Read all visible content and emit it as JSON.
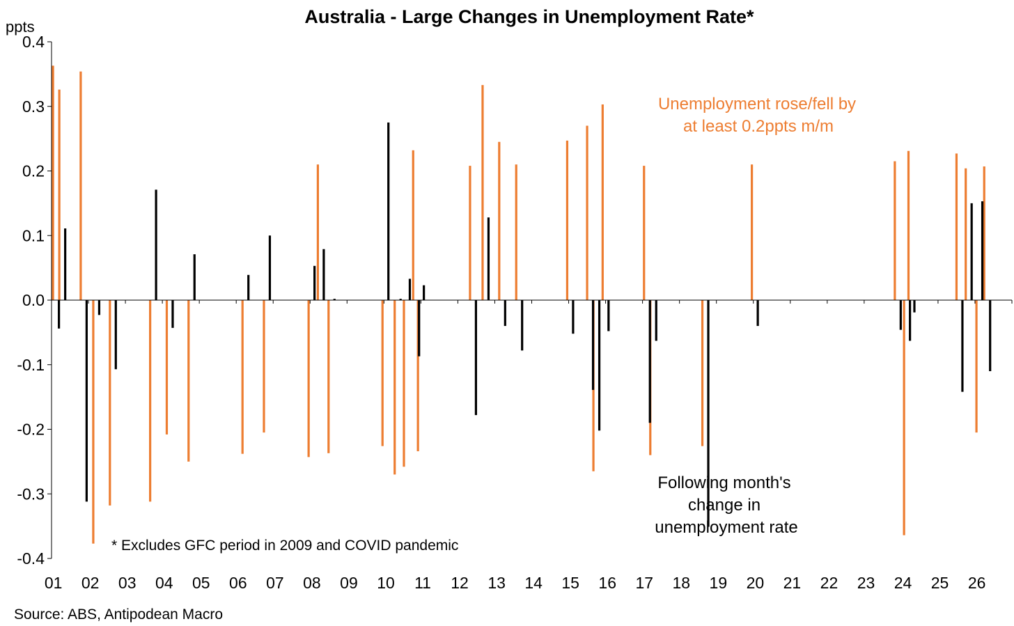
{
  "chart_data": {
    "type": "bar",
    "title": "Australia - Large Changes in Unemployment Rate*",
    "ylabel": "ppts",
    "ylim": [
      -0.4,
      0.4
    ],
    "yticks": [
      0.4,
      0.3,
      0.2,
      0.1,
      0.0,
      -0.1,
      -0.2,
      -0.3,
      -0.4
    ],
    "ytick_labels": [
      "0.4",
      "0.3",
      "0.2",
      "0.1",
      "0.0",
      "-0.1",
      "-0.2",
      "-0.3",
      "-0.4"
    ],
    "xlim": [
      2001,
      2027
    ],
    "xticks": [
      "01",
      "02",
      "03",
      "04",
      "05",
      "06",
      "07",
      "08",
      "09",
      "10",
      "11",
      "12",
      "13",
      "14",
      "15",
      "16",
      "17",
      "18",
      "19",
      "20",
      "21",
      "22",
      "23",
      "24",
      "25",
      "26"
    ],
    "grid": false,
    "colors": {
      "large_change": "#ED7D31",
      "following_month": "#000000"
    },
    "series": [
      {
        "name": "Unemployment rose/fell by at least 0.2ppts m/m",
        "x": [
          2001.04,
          2001.21,
          2001.79,
          2002.13,
          2002.58,
          2003.67,
          2004.12,
          2004.71,
          2006.17,
          2006.75,
          2007.96,
          2008.21,
          2008.5,
          2009.96,
          2010.29,
          2010.54,
          2010.79,
          2010.92,
          2012.33,
          2012.67,
          2013.12,
          2013.58,
          2014.96,
          2015.5,
          2015.67,
          2015.92,
          2017.04,
          2017.21,
          2018.62,
          2019.96,
          2023.83,
          2024.08,
          2024.2,
          2025.5,
          2025.75,
          2026.04,
          2026.25
        ],
        "values": [
          0.363,
          0.326,
          0.354,
          -0.377,
          -0.318,
          -0.312,
          -0.208,
          -0.25,
          -0.238,
          -0.205,
          -0.243,
          0.21,
          -0.237,
          -0.226,
          -0.27,
          -0.258,
          0.232,
          -0.234,
          0.208,
          0.333,
          0.245,
          0.21,
          0.247,
          0.27,
          -0.265,
          0.303,
          0.208,
          -0.24,
          -0.226,
          0.21,
          0.215,
          -0.364,
          0.231,
          0.227,
          0.204,
          -0.205,
          0.207
        ]
      },
      {
        "name": "Following month's change in unemployment rate",
        "x": [
          2001.2,
          2001.37,
          2001.95,
          2002.29,
          2002.74,
          2003.83,
          2004.28,
          2004.87,
          2006.33,
          2006.91,
          2008.12,
          2008.37,
          2008.66,
          2010.12,
          2010.45,
          2010.7,
          2010.95,
          2011.08,
          2012.49,
          2012.83,
          2013.28,
          2013.74,
          2015.12,
          2015.66,
          2015.83,
          2016.08,
          2017.2,
          2017.37,
          2018.78,
          2020.12,
          2023.99,
          2024.24,
          2024.36,
          2025.66,
          2025.91,
          2026.2,
          2026.41
        ],
        "values": [
          -0.044,
          0.111,
          -0.312,
          -0.023,
          -0.107,
          0.171,
          -0.043,
          0.071,
          0.039,
          0.1,
          0.053,
          0.079,
          0.002,
          0.275,
          0.002,
          0.033,
          -0.087,
          0.023,
          -0.178,
          0.128,
          -0.04,
          -0.078,
          -0.052,
          -0.139,
          -0.202,
          -0.048,
          -0.19,
          -0.063,
          -0.351,
          -0.04,
          -0.046,
          -0.063,
          -0.019,
          -0.142,
          0.15,
          0.153,
          -0.11
        ]
      }
    ],
    "annotations": [
      {
        "text": "Unemployment rose/fell by",
        "color": "#ED7D31"
      },
      {
        "text": "at least 0.2ppts m/m",
        "color": "#ED7D31"
      },
      {
        "text": "Following month's",
        "color": "#000000"
      },
      {
        "text": "change in",
        "color": "#000000"
      },
      {
        "text": "unemployment rate",
        "color": "#000000"
      },
      {
        "text": "* Excludes GFC period in 2009 and COVID pandemic",
        "color": "#000000"
      }
    ],
    "source": "Source: ABS, Antipodean Macro"
  }
}
